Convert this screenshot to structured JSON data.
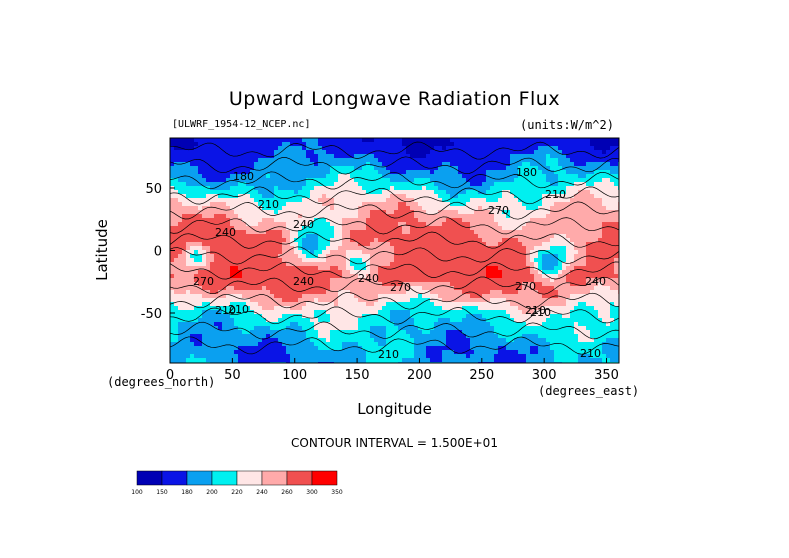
{
  "chart_data": {
    "type": "heatmap",
    "title": "Upward Longwave Radiation Flux",
    "file_label": "[ULWRF_1954-12_NCEP.nc]",
    "units_label": "(units:W/m^2)",
    "xlabel": "Longitude",
    "ylabel": "Latitude",
    "x_unit_label": "(degrees_north)",
    "y_unit_label": "(degrees_east)",
    "xlim": [
      0,
      360
    ],
    "ylim": [
      -90,
      90
    ],
    "xticks": [
      "0",
      "50",
      "100",
      "150",
      "200",
      "250",
      "300",
      "350"
    ],
    "yticks": [
      "50",
      "0",
      "-50"
    ],
    "contour_interval_text": "CONTOUR INTERVAL = 1.500E+01",
    "contour_labels": [
      "180",
      "210",
      "240",
      "270",
      "240",
      "270",
      "210",
      "240",
      "270",
      "210",
      "240",
      "270",
      "210",
      "210",
      "210",
      "210",
      "180",
      "210",
      "240"
    ],
    "colorbar": {
      "levels": [
        "100",
        "150",
        "180",
        "200",
        "220",
        "240",
        "260",
        "300",
        "350"
      ],
      "colors": [
        "#0000b4",
        "#0a14e6",
        "#0aa0f0",
        "#00f0f0",
        "#ffe6e6",
        "#ffaaaa",
        "#f05050",
        "#ff0000"
      ]
    },
    "latitude_bands": [
      {
        "lat": 85,
        "value": 160
      },
      {
        "lat": 70,
        "value": 180
      },
      {
        "lat": 55,
        "value": 200
      },
      {
        "lat": 40,
        "value": 230
      },
      {
        "lat": 25,
        "value": 250
      },
      {
        "lat": 10,
        "value": 265
      },
      {
        "lat": -5,
        "value": 270
      },
      {
        "lat": -20,
        "value": 280
      },
      {
        "lat": -35,
        "value": 250
      },
      {
        "lat": -50,
        "value": 215
      },
      {
        "lat": -65,
        "value": 200
      },
      {
        "lat": -80,
        "value": 190
      }
    ]
  }
}
